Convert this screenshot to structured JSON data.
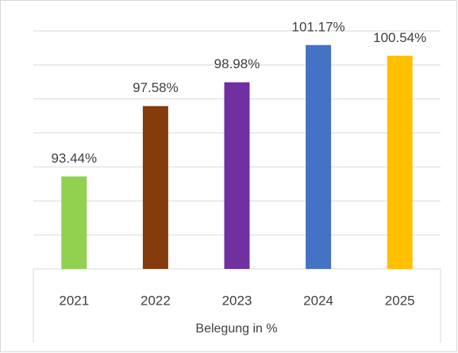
{
  "chart_data": {
    "type": "bar",
    "x_label": "Belegung in %",
    "categories": [
      "2021",
      "2022",
      "2023",
      "2024",
      "2025"
    ],
    "values": [
      93.44,
      97.58,
      98.98,
      101.17,
      100.54
    ],
    "value_labels": [
      "93.44%",
      "97.58%",
      "98.98%",
      "101.17%",
      "100.54%"
    ],
    "colors": [
      "#92d050",
      "#843c0c",
      "#7030a0",
      "#4472c4",
      "#ffc000"
    ],
    "ylim": [
      88,
      102
    ],
    "yticks": [
      88,
      90,
      92,
      94,
      96,
      98,
      100,
      102
    ],
    "grid": true
  }
}
